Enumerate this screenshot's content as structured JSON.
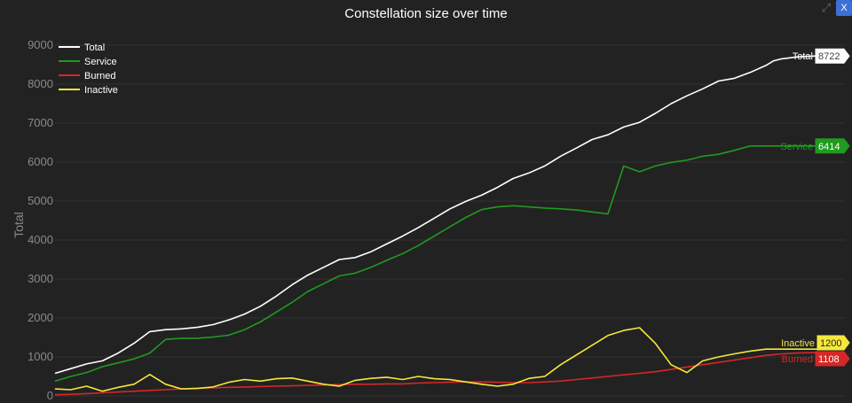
{
  "modebar": {
    "close_label": "X"
  },
  "chart_data": {
    "type": "line",
    "title": "Constellation size over time",
    "xlabel": "",
    "ylabel": "Total",
    "ylim": [
      0,
      9000
    ],
    "yticks": [
      0,
      1000,
      2000,
      3000,
      4000,
      5000,
      6000,
      7000,
      8000,
      9000
    ],
    "grid": true,
    "legend_position": "top-left",
    "x": [
      0,
      2,
      4,
      6,
      8,
      10,
      12,
      14,
      16,
      18,
      20,
      22,
      24,
      26,
      28,
      30,
      32,
      34,
      36,
      38,
      40,
      42,
      44,
      46,
      48,
      50,
      52,
      54,
      56,
      58,
      60,
      62,
      64,
      66,
      68,
      70,
      72,
      74,
      76,
      78,
      80,
      82,
      84,
      86,
      88,
      90,
      91,
      92,
      94,
      96,
      98,
      100
    ],
    "series": [
      {
        "name": "Total",
        "color": "#ffffff",
        "end_label": "8722",
        "values": [
          580,
          700,
          820,
          900,
          1100,
          1350,
          1650,
          1700,
          1720,
          1760,
          1830,
          1950,
          2100,
          2300,
          2560,
          2850,
          3100,
          3300,
          3500,
          3550,
          3700,
          3900,
          4100,
          4320,
          4560,
          4800,
          4990,
          5150,
          5350,
          5580,
          5720,
          5900,
          6150,
          6360,
          6580,
          6700,
          6900,
          7020,
          7250,
          7500,
          7700,
          7880,
          8080,
          8150,
          8300,
          8480,
          8600,
          8650,
          8700,
          8720,
          8722,
          8722
        ]
      },
      {
        "name": "Service",
        "color": "#1f9b1f",
        "end_label": "6414",
        "values": [
          380,
          500,
          600,
          750,
          850,
          950,
          1100,
          1450,
          1480,
          1480,
          1510,
          1560,
          1700,
          1900,
          2150,
          2400,
          2680,
          2880,
          3080,
          3150,
          3300,
          3480,
          3650,
          3860,
          4100,
          4340,
          4580,
          4780,
          4850,
          4880,
          4850,
          4820,
          4800,
          4770,
          4720,
          4670,
          5900,
          5750,
          5900,
          5990,
          6050,
          6150,
          6200,
          6300,
          6414,
          6414,
          6414,
          6414,
          6414,
          6414,
          6414,
          6414
        ]
      },
      {
        "name": "Burned",
        "color": "#d62728",
        "end_label": "1108",
        "values": [
          30,
          40,
          60,
          80,
          100,
          120,
          140,
          160,
          180,
          200,
          210,
          220,
          230,
          240,
          250,
          260,
          270,
          280,
          290,
          300,
          300,
          310,
          310,
          330,
          340,
          350,
          360,
          360,
          350,
          340,
          340,
          360,
          380,
          420,
          460,
          500,
          540,
          580,
          620,
          680,
          740,
          800,
          860,
          920,
          980,
          1040,
          1060,
          1080,
          1100,
          1108,
          1108,
          1108
        ]
      },
      {
        "name": "Inactive",
        "color": "#f5e83a",
        "end_label": "1200",
        "values": [
          180,
          160,
          250,
          120,
          220,
          300,
          550,
          300,
          180,
          190,
          230,
          350,
          420,
          380,
          440,
          460,
          380,
          300,
          250,
          400,
          450,
          480,
          420,
          500,
          440,
          420,
          360,
          300,
          250,
          300,
          450,
          500,
          800,
          1050,
          1300,
          1550,
          1680,
          1750,
          1350,
          800,
          600,
          900,
          1000,
          1080,
          1150,
          1200,
          1200,
          1200,
          1200,
          1200,
          1200,
          1200
        ]
      }
    ]
  }
}
